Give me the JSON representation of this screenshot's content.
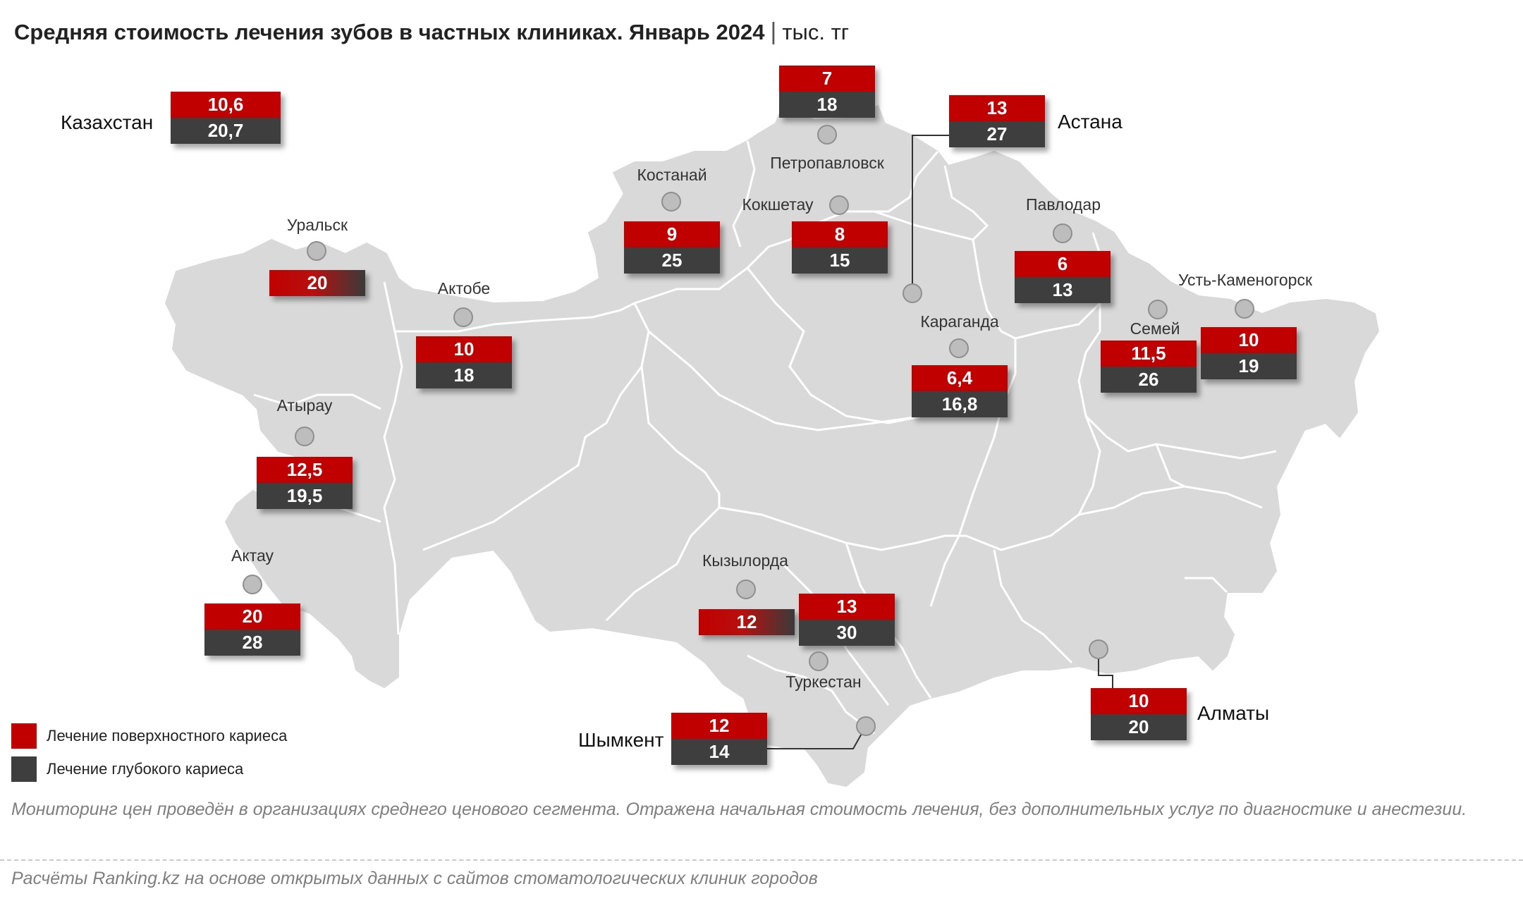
{
  "title": {
    "main": "Средняя стоимость лечения зубов в частных клиниках. Январь 2024",
    "separator": "|",
    "unit": "тыс. тг"
  },
  "colors": {
    "surface_caries": "#c00000",
    "deep_caries": "#3e3e3e",
    "map_fill": "#d9d9d9",
    "map_borders": "#ffffff"
  },
  "national": {
    "name": "Казахстан",
    "surface": "10,6",
    "deep": "20,7"
  },
  "cities": {
    "petropavlovsk": {
      "name": "Петропавловск",
      "surface": "7",
      "deep": "18"
    },
    "astana": {
      "name": "Астана",
      "surface": "13",
      "deep": "27"
    },
    "kostanay": {
      "name": "Костанай",
      "surface": "9",
      "deep": "25"
    },
    "kokshetau": {
      "name": "Кокшетау",
      "surface": "8",
      "deep": "15"
    },
    "pavlodar": {
      "name": "Павлодар",
      "surface": "6",
      "deep": "13"
    },
    "uralsk": {
      "name": "Уральск",
      "combined": "20"
    },
    "aktobe": {
      "name": "Актобе",
      "surface": "10",
      "deep": "18"
    },
    "karaganda": {
      "name": "Караганда",
      "surface": "6,4",
      "deep": "16,8"
    },
    "semey": {
      "name": "Семей",
      "surface": "11,5",
      "deep": "26"
    },
    "ust_kamenogorsk": {
      "name": "Усть-Каменогорск",
      "surface": "10",
      "deep": "19"
    },
    "atyrau": {
      "name": "Атырау",
      "surface": "12,5",
      "deep": "19,5"
    },
    "aktau": {
      "name": "Актау",
      "surface": "20",
      "deep": "28"
    },
    "kyzylorda": {
      "name": "Кызылорда",
      "combined": "12"
    },
    "turkestan": {
      "name": "Туркестан",
      "surface": "13",
      "deep": "30"
    },
    "shymkent": {
      "name": "Шымкент",
      "surface": "12",
      "deep": "14"
    },
    "almaty": {
      "name": "Алматы",
      "surface": "10",
      "deep": "20"
    }
  },
  "legend": {
    "surface_label": "Лечение поверхностного кариеса",
    "deep_label": "Лечение глубокого кариеса"
  },
  "note": "Мониторинг цен проведён в организациях среднего ценового сегмента. Отражена начальная стоимость лечения, без дополнительных услуг по диагностике и анестезии.",
  "source": "Расчёты Ranking.kz на основе открытых данных с сайтов стоматологических клиник городов"
}
